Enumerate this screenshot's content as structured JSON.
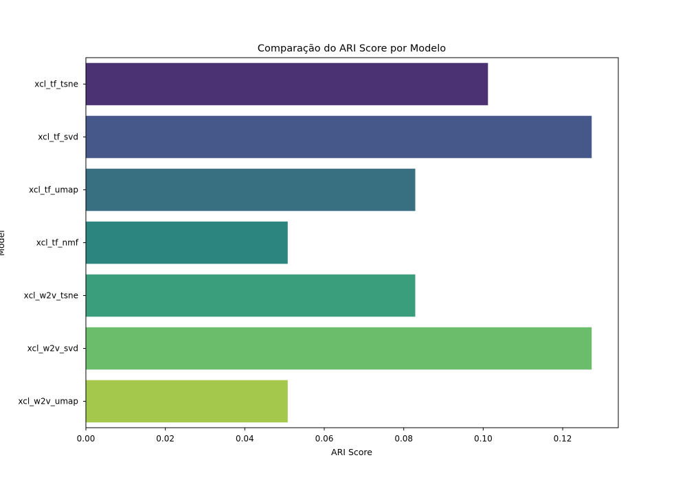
{
  "chart_data": {
    "type": "bar",
    "orientation": "horizontal",
    "title": "Comparação do ARI Score por Modelo",
    "xlabel": "ARI Score",
    "ylabel": "Model",
    "categories": [
      "xcl_tf_tsne",
      "xcl_tf_svd",
      "xcl_tf_umap",
      "xcl_tf_nmf",
      "xcl_w2v_tsne",
      "xcl_w2v_svd",
      "xcl_w2v_umap"
    ],
    "values": [
      0.1012,
      0.1273,
      0.0829,
      0.0508,
      0.0829,
      0.1273,
      0.0508
    ],
    "colors": [
      "#4b3272",
      "#46578a",
      "#386f81",
      "#2d8580",
      "#3a9e7d",
      "#6bbc6b",
      "#a3c84b"
    ],
    "xlim": [
      0,
      0.134
    ],
    "xticks": [
      0,
      0.02,
      0.04,
      0.06,
      0.08,
      0.1,
      0.12
    ],
    "xtick_labels": [
      "0.00",
      "0.02",
      "0.04",
      "0.06",
      "0.08",
      "0.10",
      "0.12"
    ],
    "grid": false,
    "legend": "none"
  }
}
